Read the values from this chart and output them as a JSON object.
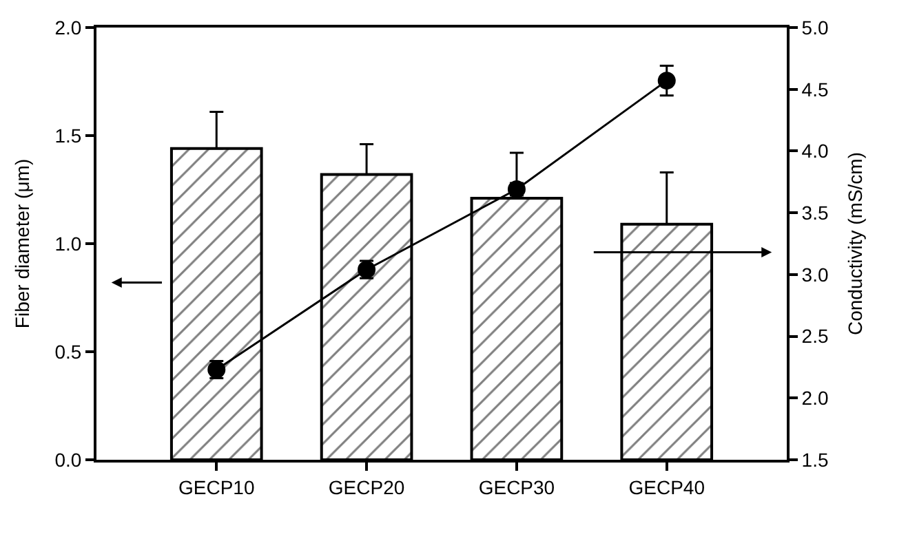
{
  "chart_data": {
    "type": "bar",
    "xlabel": null,
    "ylabel": "Fiber diameter (μm)",
    "y2label": "Conductivity (mS/cm)",
    "categories": [
      "GECP10",
      "GECP20",
      "GECP30",
      "GECP40"
    ],
    "series": [
      {
        "color": "#000000",
        "values": [
          1.44,
          1.32,
          1.21,
          1.09
        ],
        "errors": [
          [
            1.44,
            1.61
          ],
          [
            1.32,
            1.46
          ],
          [
            1.21,
            1.42
          ],
          [
            1.09,
            1.33
          ]
        ]
      },
      {
        "type": "line",
        "axis": "y2",
        "color": "#000000",
        "marker": "circle",
        "values": [
          2.23,
          3.04,
          3.69,
          4.57
        ],
        "errors": [
          0.07,
          0.07,
          0.05,
          0.12
        ]
      }
    ],
    "ylim": [
      0,
      2.0
    ],
    "yticks": [
      {
        "value": 0,
        "label": "0.0"
      },
      0.5,
      {
        "value": 1,
        "label": "1.0"
      },
      1.5,
      {
        "value": 2,
        "label": "2.0"
      }
    ],
    "y2lim": [
      1.5,
      5.0
    ],
    "y2ticks": [
      1.5,
      {
        "value": 2,
        "label": "2.0"
      },
      2.5,
      {
        "value": 3,
        "label": "3.0"
      },
      3.5,
      {
        "value": 4,
        "label": "4.0"
      },
      4.5,
      {
        "value": 5,
        "label": "5.0"
      }
    ],
    "legend": false
  }
}
